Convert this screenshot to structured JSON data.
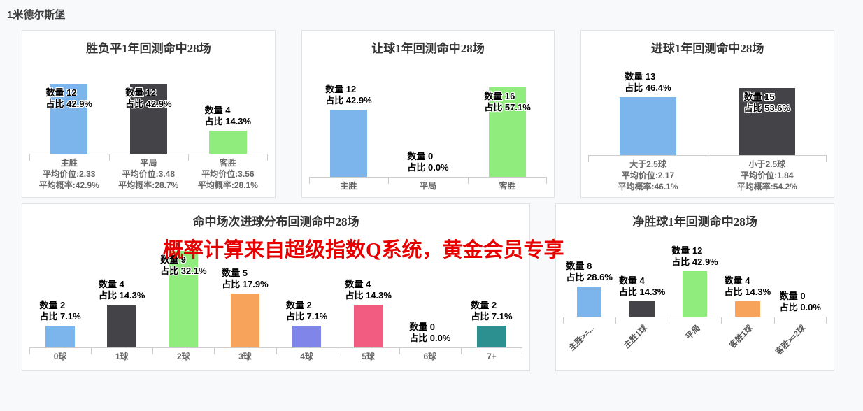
{
  "page": {
    "title": "1米德尔斯堡",
    "watermark": "概率计算来自超级指数Q系统，黄金会员专享",
    "watermark_color": "#e60000",
    "background": "#f8f9fa",
    "panel_border": "#e2e2e2"
  },
  "labels": {
    "count_prefix": "数量",
    "pct_prefix": "占比"
  },
  "chart_data": [
    {
      "type": "bar",
      "title": "胜负平1年回测命中28场",
      "categories": [
        "主胜",
        "平局",
        "客胜"
      ],
      "values": [
        12,
        12,
        4
      ],
      "pct_labels": [
        "42.9%",
        "42.9%",
        "14.3%"
      ],
      "colors": [
        "#7cb5ec",
        "#434348",
        "#90ed7d"
      ],
      "sub_labels": [
        [
          "平均价位:2.33",
          "平均概率:42.9%"
        ],
        [
          "平均价位:3.48",
          "平均概率:28.7%"
        ],
        [
          "平均价位:3.56",
          "平均概率:28.1%"
        ]
      ],
      "label_inside": [
        true,
        true,
        false
      ],
      "ylim": [
        0,
        12
      ],
      "grid": false,
      "legend": false
    },
    {
      "type": "bar",
      "title": "让球1年回测命中28场",
      "categories": [
        "主胜",
        "平局",
        "客胜"
      ],
      "values": [
        12,
        0,
        16
      ],
      "pct_labels": [
        "42.9%",
        "0.0%",
        "57.1%"
      ],
      "colors": [
        "#7cb5ec",
        "#434348",
        "#90ed7d"
      ],
      "sub_labels": null,
      "label_inside": [
        false,
        false,
        true
      ],
      "ylim": [
        0,
        16
      ],
      "grid": false,
      "legend": false
    },
    {
      "type": "bar",
      "title": "进球1年回测命中28场",
      "categories": [
        "大于2.5球",
        "小于2.5球"
      ],
      "values": [
        13,
        15
      ],
      "pct_labels": [
        "46.4%",
        "53.6%"
      ],
      "colors": [
        "#7cb5ec",
        "#434348"
      ],
      "sub_labels": [
        [
          "平均价位:2.17",
          "平均概率:46.1%"
        ],
        [
          "平均价位:1.84",
          "平均概率:54.2%"
        ]
      ],
      "label_inside": [
        false,
        true
      ],
      "ylim": [
        0,
        15
      ],
      "grid": false,
      "legend": false
    },
    {
      "type": "bar",
      "title": "命中场次进球分布回测命中28场",
      "categories": [
        "0球",
        "1球",
        "2球",
        "3球",
        "4球",
        "5球",
        "6球",
        "7+"
      ],
      "values": [
        2,
        4,
        9,
        5,
        2,
        4,
        0,
        2
      ],
      "pct_labels": [
        "7.1%",
        "14.3%",
        "32.1%",
        "17.9%",
        "7.1%",
        "14.3%",
        "0.0%",
        "7.1%"
      ],
      "colors": [
        "#7cb5ec",
        "#434348",
        "#90ed7d",
        "#f7a35c",
        "#8085e9",
        "#f15c80",
        "#e4d354",
        "#2b908f"
      ],
      "sub_labels": null,
      "label_inside": [
        false,
        false,
        true,
        false,
        false,
        false,
        false,
        false
      ],
      "ylim": [
        0,
        9
      ],
      "grid": false,
      "legend": false
    },
    {
      "type": "bar",
      "title": "净胜球1年回测命中28场",
      "categories": [
        "主胜>=...",
        "主胜1球",
        "平局",
        "客胜1球",
        "客胜>=2球"
      ],
      "values": [
        8,
        4,
        12,
        4,
        0
      ],
      "pct_labels": [
        "28.6%",
        "14.3%",
        "42.9%",
        "14.3%",
        "0.0%"
      ],
      "colors": [
        "#7cb5ec",
        "#434348",
        "#90ed7d",
        "#f7a35c",
        "#8085e9"
      ],
      "sub_labels": null,
      "label_rotation": -45,
      "label_inside": [
        false,
        false,
        false,
        false,
        false
      ],
      "ylim": [
        0,
        12
      ],
      "grid": false,
      "legend": false
    }
  ]
}
